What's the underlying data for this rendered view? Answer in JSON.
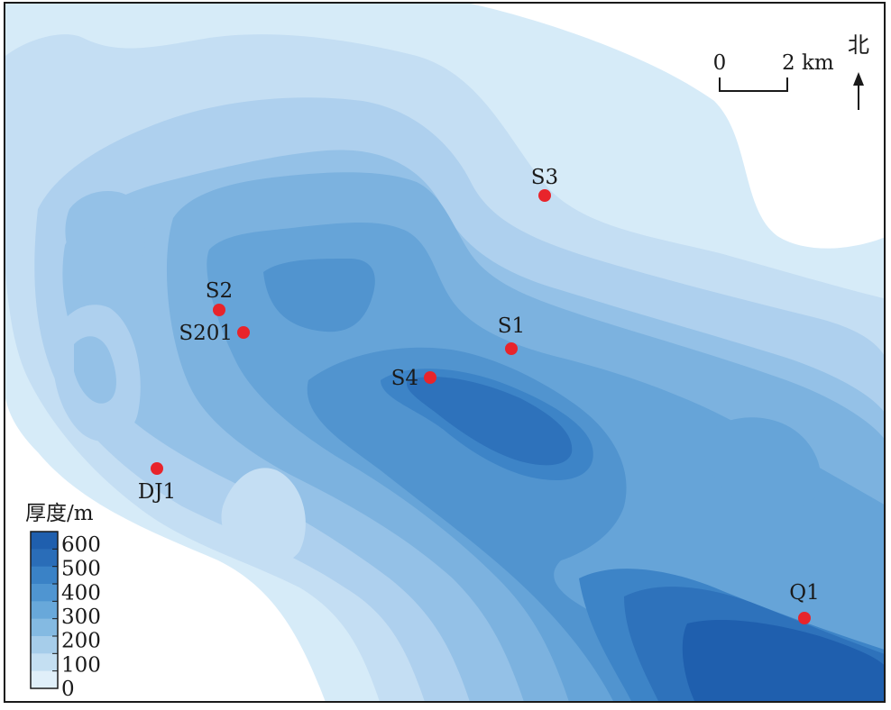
{
  "map": {
    "wells": [
      {
        "name": "S3"
      },
      {
        "name": "S2"
      },
      {
        "name": "S201"
      },
      {
        "name": "S1"
      },
      {
        "name": "S4"
      },
      {
        "name": "DJ1"
      },
      {
        "name": "Q1"
      }
    ],
    "well_color": "#e8242b",
    "scale_bar": {
      "start_label": "0",
      "end_label": "2 km",
      "length_km": 2
    },
    "north_arrow": {
      "label": "北"
    },
    "legend": {
      "title": "厚度/m",
      "ticks": [
        "600",
        "500",
        "400",
        "300",
        "200",
        "100",
        "0"
      ],
      "colors": [
        "#1f5fae",
        "#2a6db8",
        "#3a82c6",
        "#4f95d1",
        "#68a8da",
        "#84bae2",
        "#a6cdea",
        "#c4dff2",
        "#e0eff9"
      ]
    }
  }
}
